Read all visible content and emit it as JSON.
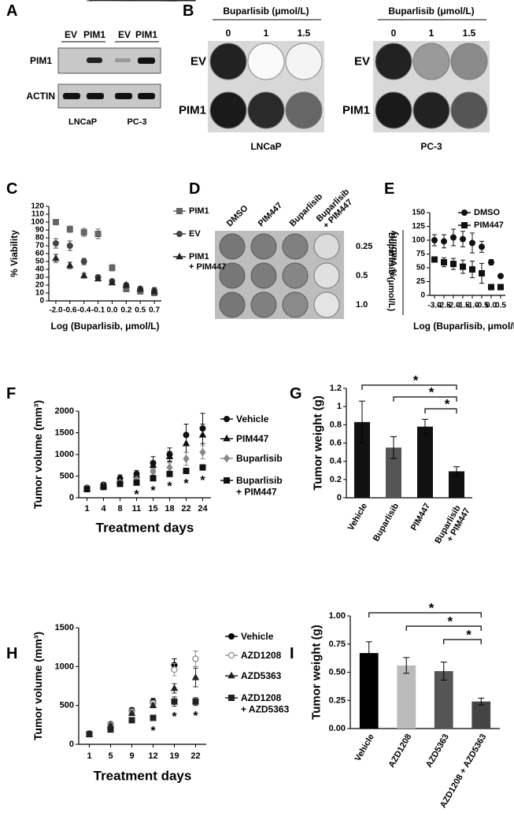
{
  "panels": {
    "A": {
      "label": "A",
      "columns": [
        "EV",
        "PIM1",
        "EV",
        "PIM1"
      ],
      "rows": [
        "PIM1",
        "ACTIN"
      ],
      "cell_lines": [
        "LNCaP",
        "PC-3"
      ]
    },
    "B": {
      "label": "B",
      "plates": [
        {
          "header": "Buparlisib (μmol/L)",
          "doses": [
            "0",
            "1",
            "1.5"
          ],
          "rows": [
            "EV",
            "PIM1"
          ],
          "cell_line": "LNCaP"
        },
        {
          "header": "Buparlisib (μmol/L)",
          "doses": [
            "0",
            "1",
            "1.5"
          ],
          "rows": [
            "EV",
            "PIM1"
          ],
          "cell_line": "PC-3"
        }
      ]
    },
    "D": {
      "label": "D",
      "columns": [
        "DMSO",
        "PIM447",
        "Buparlisib",
        "Buparlisib + PIM447"
      ],
      "doses": [
        "0.25",
        "0.5",
        "1.0"
      ],
      "dose_title": "Buparlisib (μmol/L)"
    }
  },
  "chart_data": [
    {
      "type": "line",
      "panel_label": "C",
      "ylabel": "% Viability",
      "xlabel": "Log (Buparlisib, μmol/L)",
      "categories": [
        "-2.0",
        "-0.6",
        "-0.4",
        "-0.1",
        "0.0",
        "0.2",
        "0.5",
        "0.7"
      ],
      "ylim": [
        0,
        120
      ],
      "yticks": [
        0,
        10,
        20,
        30,
        40,
        50,
        60,
        70,
        80,
        90,
        100,
        110,
        120
      ],
      "series": [
        {
          "name": "PIM1",
          "color": "#666666",
          "marker": "square",
          "values": [
            100,
            91,
            87,
            85,
            42,
            15,
            12,
            10
          ],
          "errors": [
            3,
            4,
            5,
            6,
            4,
            2,
            2,
            2
          ]
        },
        {
          "name": "EV",
          "color": "#444444",
          "marker": "circle",
          "values": [
            73,
            70,
            50,
            30,
            25,
            20,
            15,
            13
          ],
          "errors": [
            6,
            6,
            4,
            3,
            2,
            2,
            3,
            4
          ]
        },
        {
          "name": "PIM1 + PIM447",
          "color": "#222222",
          "marker": "triangle",
          "values": [
            54,
            45,
            32,
            28,
            23,
            20,
            15,
            12
          ],
          "errors": [
            5,
            4,
            3,
            2,
            2,
            2,
            3,
            3
          ]
        }
      ]
    },
    {
      "type": "line",
      "panel_label": "E",
      "ylabel": "% Viability",
      "xlabel": "Log (Buparlisib, μmol/L)",
      "categories": [
        "-3.0",
        "-2.5",
        "-2.0",
        "-1.5",
        "-1.0",
        "-0.5",
        "0.0",
        "0.5"
      ],
      "ylim": [
        0,
        150
      ],
      "yticks": [
        0,
        25,
        50,
        75,
        100,
        125,
        150
      ],
      "series": [
        {
          "name": "DMSO",
          "color": "#111111",
          "marker": "circle",
          "values": [
            100,
            98,
            105,
            102,
            95,
            88,
            60,
            35
          ],
          "errors": [
            10,
            12,
            15,
            14,
            18,
            10,
            5,
            2
          ]
        },
        {
          "name": "PIM447",
          "color": "#111111",
          "marker": "square",
          "values": [
            65,
            60,
            57,
            52,
            47,
            40,
            15,
            15
          ],
          "errors": [
            5,
            8,
            10,
            12,
            15,
            18,
            3,
            2
          ]
        }
      ]
    },
    {
      "type": "line",
      "panel_label": "F",
      "ylabel": "Tumor volume (mm³)",
      "xlabel": "Treatment days",
      "categories": [
        "1",
        "4",
        "8",
        "11",
        "15",
        "18",
        "22",
        "24"
      ],
      "ylim": [
        0,
        2000
      ],
      "yticks": [
        0,
        500,
        1000,
        1500,
        2000
      ],
      "significance": [
        null,
        null,
        null,
        "*",
        "*",
        "*",
        "*",
        "*"
      ],
      "series": [
        {
          "name": "Vehicle",
          "color": "#111111",
          "marker": "circle",
          "values": [
            230,
            300,
            450,
            550,
            800,
            1000,
            1450,
            1600
          ],
          "errors": [
            30,
            50,
            80,
            80,
            150,
            150,
            250,
            350
          ]
        },
        {
          "name": "PIM447",
          "color": "#111111",
          "marker": "triangle",
          "values": [
            220,
            280,
            400,
            520,
            750,
            950,
            1250,
            1450
          ],
          "errors": [
            30,
            40,
            60,
            60,
            100,
            120,
            200,
            250
          ]
        },
        {
          "name": "Buparlisib",
          "color": "#888888",
          "marker": "diamond",
          "values": [
            210,
            260,
            350,
            420,
            600,
            700,
            900,
            1050
          ],
          "errors": [
            20,
            30,
            40,
            50,
            80,
            100,
            150,
            150
          ]
        },
        {
          "name": "Buparlisib + PIM447",
          "color": "#111111",
          "marker": "square",
          "values": [
            200,
            250,
            320,
            350,
            450,
            550,
            620,
            700
          ],
          "errors": [
            20,
            20,
            30,
            30,
            40,
            40,
            50,
            50
          ]
        }
      ]
    },
    {
      "type": "bar",
      "panel_label": "G",
      "ylabel": "Tumor weight (g)",
      "categories": [
        "Vehicle",
        "Buparlisib",
        "PIM447",
        "Buparlisib + PIM447"
      ],
      "values": [
        0.83,
        0.55,
        0.78,
        0.29
      ],
      "errors": [
        0.23,
        0.12,
        0.08,
        0.05
      ],
      "colors": [
        "#111111",
        "#555555",
        "#111111",
        "#111111"
      ],
      "ylim": [
        0,
        1.2
      ],
      "yticks": [
        0,
        0.2,
        0.4,
        0.6,
        0.8,
        1,
        1.2
      ],
      "significance": [
        "*",
        "*",
        "*"
      ]
    },
    {
      "type": "line",
      "panel_label": "H",
      "ylabel": "Tumor volume (mm³)",
      "xlabel": "Treatment days",
      "categories": [
        "1",
        "5",
        "9",
        "12",
        "19",
        "22"
      ],
      "ylim": [
        0,
        1500
      ],
      "yticks": [
        0,
        500,
        1000,
        1500
      ],
      "significance": [
        null,
        null,
        null,
        "*",
        "*",
        "*"
      ],
      "series": [
        {
          "name": "Vehicle",
          "color": "#000000",
          "marker": "circle",
          "values": [
            140,
            260,
            440,
            550,
            1020,
            1100
          ],
          "errors": [
            20,
            20,
            30,
            40,
            80,
            100
          ]
        },
        {
          "name": "AZD1208",
          "color": "#999999",
          "marker": "open-circle",
          "values": [
            140,
            250,
            420,
            530,
            960,
            1100
          ],
          "errors": [
            20,
            20,
            30,
            30,
            80,
            100
          ]
        },
        {
          "name": "AZD5363",
          "color": "#222222",
          "marker": "triangle",
          "values": [
            130,
            240,
            400,
            500,
            720,
            860
          ],
          "errors": [
            20,
            20,
            30,
            30,
            60,
            120
          ]
        },
        {
          "name": "AZD1208 + AZD5363",
          "color": "#222222",
          "marker": "square",
          "values": [
            130,
            190,
            310,
            340,
            550,
            550
          ],
          "errors": [
            20,
            20,
            30,
            30,
            60,
            50
          ]
        }
      ]
    },
    {
      "type": "bar",
      "panel_label": "I",
      "ylabel": "Tumor weight (g)",
      "categories": [
        "Vehicle",
        "AZD1208",
        "AZD5363",
        "AZD1208 + AZD5363"
      ],
      "values": [
        0.67,
        0.56,
        0.51,
        0.24
      ],
      "errors": [
        0.1,
        0.07,
        0.08,
        0.03
      ],
      "colors": [
        "#000000",
        "#bbbbbb",
        "#555555",
        "#444444"
      ],
      "ylim": [
        0,
        1
      ],
      "yticks": [
        {
          "value": 0,
          "label": "0.00"
        },
        {
          "value": 0.25,
          "label": "0.25"
        },
        {
          "value": 0.5,
          "label": "0.50"
        },
        {
          "value": 0.75,
          "label": "0.75"
        },
        {
          "value": 1,
          "label": "1.00"
        }
      ],
      "significance": [
        "*",
        "*",
        "*"
      ]
    }
  ]
}
